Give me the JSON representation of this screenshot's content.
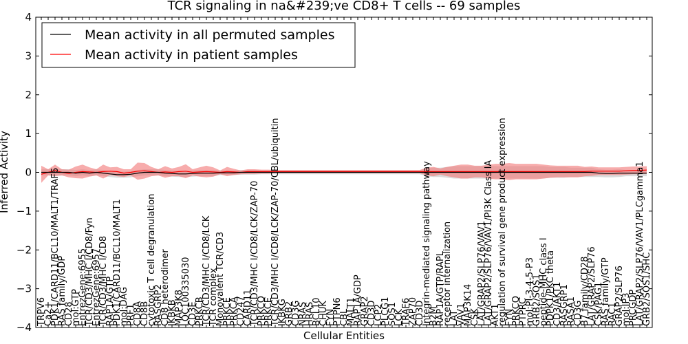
{
  "chart_data": {
    "type": "line",
    "title": "TCR signaling in na&#239;ve CD8+ T cells -- 69 samples",
    "xlabel": "Cellular Entities",
    "ylabel": "Inferred Activity",
    "ylim": [
      -4,
      4
    ],
    "yticks": [
      "−4",
      "−3",
      "−2",
      "−1",
      "0",
      "1",
      "2",
      "3",
      "4"
    ],
    "legend": {
      "position": "top-left",
      "entries": [
        {
          "label": "Mean activity in all permuted samples",
          "color": "#000000"
        },
        {
          "label": "Mean activity in patient samples",
          "color": "#ff0000"
        }
      ]
    },
    "categories": [
      "TRPV6",
      "Ca2+",
      "PDK1/CARD11/BCL10/MALT1/TRAF6",
      "RAS family/GDP",
      "CD28",
      "mol:GTP",
      "EntrezGene:6955",
      "TCR/CD3/MHC I/CD8/Fyn",
      "EntrezGene:6957",
      "TCR/CD3/MHC I/CD8",
      "RAP1A/GTP",
      "PDK1/CARD11/BCL10/MALT1",
      "mol:DAG",
      "PRF1",
      "CD8A",
      "CD8B",
      "cytotoxic T cell degranulation",
      "RASGRP2",
      "CD8 heterodimer",
      "IKBKB",
      "MAP3K8",
      "LOC100335030",
      "CD3E",
      "PRKCB",
      "TCR/CD3/MHC I/CD8/LCK",
      "TCR complex",
      "Monovalent TCR/CD3",
      "PRKCE",
      "PRKCA",
      "CD247",
      "CARD11",
      "TCR/CD3/MHC I/CD8/LCK/ZAP-70",
      "PRKCQ",
      "PRKCE",
      "TCR/CD3/MHC I/CD8/LCK/ZAP-70/CBL/ubiquitin",
      "IKBKG",
      "GRB2",
      "CD3G",
      "NRAS",
      "HRAS",
      "BCL10",
      "CHUK",
      "FYN",
      "PTPN6",
      "CBL",
      "MALT1",
      "RAP1A/GDP",
      "GRAP2",
      "CD3D",
      "LCP2",
      "PLCG1",
      "SOS1",
      "LCK",
      "TRAF6",
      "ZAP70",
      "CD3D",
      "Integrin-mediated signaling pathway",
      "B2M",
      "RAP1A/GTP/RAPL",
      "receptor internalization",
      "LAT",
      "VAV1",
      "MAP3K14",
      "CSK",
      "LAT/GRAP2/SLP76/VAV1",
      "LAT/GRAP2/SLP76/VAV1/PI3K Class IA",
      "AKT1",
      "regulation of survival gene product expression",
      "FYN",
      "PRKCQ",
      "PTPRC",
      "mol:PI-3-4-5-P3",
      "GRB2/SOS1",
      "peptide-MHC class I",
      "PDPK1/PKC theta",
      "CD3/AKT1",
      "RASGRP1",
      "RASA1",
      "CD3G",
      "B7 family/CD28",
      "LAT/GRAP2/SLP76",
      "CSK/PAG1",
      "RAS family/GTP",
      "RAC1",
      "GRAP2/SLP76",
      "mol:IP3",
      "PRCGDP",
      "LAT/GRAP2/SLP76/VAV1/PLCgamma1",
      "GRB2/SOS1/SHC"
    ],
    "series": [
      {
        "name": "Mean activity in patient samples",
        "values": [
          -0.05,
          0.0,
          0.05,
          0.0,
          -0.03,
          0.0,
          0.02,
          0.01,
          0.0,
          0.02,
          0.03,
          0.02,
          -0.02,
          0.0,
          0.03,
          0.04,
          0.02,
          0.0,
          0.01,
          0.0,
          0.02,
          0.03,
          0.0,
          0.01,
          0.02,
          0.01,
          0.0,
          0.02,
          0.01,
          0.0,
          0.02,
          0.02,
          0.02,
          0.02,
          0.02,
          0.02,
          0.02,
          0.02,
          0.02,
          0.02,
          0.02,
          0.02,
          0.02,
          0.02,
          0.02,
          0.02,
          0.02,
          0.02,
          0.02,
          0.02,
          0.02,
          0.02,
          0.02,
          0.02,
          0.02,
          0.02,
          0.02,
          0.02,
          0.02,
          0.02,
          0.02,
          0.02,
          0.02,
          0.02,
          0.02,
          0.02,
          0.02,
          0.02,
          0.02,
          0.02,
          0.02,
          0.02,
          0.02,
          0.02,
          0.02,
          0.02,
          0.02,
          0.02,
          0.02,
          0.02,
          0.03,
          0.03,
          0.03,
          0.03,
          0.03,
          0.04,
          0.05,
          0.05,
          0.06
        ],
        "band_halfwidth": [
          0.22,
          0.08,
          0.15,
          0.08,
          0.1,
          0.15,
          0.18,
          0.12,
          0.08,
          0.18,
          0.1,
          0.12,
          0.1,
          0.08,
          0.22,
          0.2,
          0.12,
          0.08,
          0.15,
          0.1,
          0.12,
          0.18,
          0.08,
          0.12,
          0.15,
          0.12,
          0.05,
          0.12,
          0.08,
          0.05,
          0.06,
          0.06,
          0.05,
          0.05,
          0.04,
          0.04,
          0.04,
          0.04,
          0.04,
          0.04,
          0.04,
          0.04,
          0.04,
          0.04,
          0.04,
          0.04,
          0.04,
          0.04,
          0.04,
          0.04,
          0.04,
          0.04,
          0.04,
          0.04,
          0.04,
          0.04,
          0.1,
          0.12,
          0.08,
          0.12,
          0.15,
          0.18,
          0.18,
          0.15,
          0.15,
          0.18,
          0.2,
          0.2,
          0.22,
          0.2,
          0.2,
          0.2,
          0.2,
          0.18,
          0.16,
          0.15,
          0.15,
          0.15,
          0.15,
          0.12,
          0.12,
          0.1,
          0.1,
          0.1,
          0.1,
          0.1,
          0.1,
          0.1,
          0.1
        ]
      },
      {
        "name": "Mean activity in all permuted samples",
        "values": [
          0.0,
          0.0,
          0.0,
          0.0,
          0.0,
          -0.02,
          0.0,
          -0.02,
          0.0,
          -0.02,
          -0.04,
          -0.06,
          -0.06,
          -0.05,
          -0.02,
          0.0,
          0.0,
          0.0,
          -0.02,
          -0.03,
          -0.04,
          -0.04,
          -0.03,
          -0.02,
          -0.02,
          -0.02,
          -0.01,
          -0.01,
          -0.01,
          0.0,
          0.0,
          0.0,
          0.0,
          0.0,
          0.0,
          0.0,
          0.0,
          0.0,
          0.0,
          0.0,
          0.0,
          0.0,
          0.0,
          0.0,
          0.0,
          0.0,
          0.0,
          0.0,
          0.0,
          0.0,
          0.0,
          0.0,
          0.0,
          0.0,
          0.0,
          0.0,
          0.0,
          0.0,
          0.0,
          0.0,
          0.0,
          0.0,
          0.0,
          0.0,
          0.0,
          0.0,
          0.0,
          0.0,
          0.0,
          0.0,
          0.0,
          0.0,
          0.0,
          0.0,
          0.0,
          0.0,
          0.0,
          0.0,
          0.0,
          0.0,
          0.0,
          -0.02,
          -0.03,
          -0.03,
          -0.02,
          -0.02,
          -0.02,
          -0.02,
          -0.02
        ],
        "band_halfwidth": [
          0.08,
          0.08,
          0.08,
          0.08,
          0.08,
          0.08,
          0.08,
          0.08,
          0.08,
          0.08,
          0.08,
          0.08,
          0.08,
          0.08,
          0.08,
          0.08,
          0.08,
          0.08,
          0.08,
          0.08,
          0.08,
          0.08,
          0.08,
          0.08,
          0.08,
          0.08,
          0.06,
          0.06,
          0.06,
          0.06,
          0.06,
          0.06,
          0.05,
          0.05,
          0.05,
          0.05,
          0.05,
          0.05,
          0.05,
          0.05,
          0.05,
          0.05,
          0.05,
          0.05,
          0.05,
          0.05,
          0.05,
          0.05,
          0.05,
          0.05,
          0.05,
          0.05,
          0.05,
          0.05,
          0.05,
          0.05,
          0.1,
          0.12,
          0.12,
          0.14,
          0.16,
          0.16,
          0.16,
          0.16,
          0.16,
          0.16,
          0.16,
          0.16,
          0.16,
          0.16,
          0.16,
          0.16,
          0.16,
          0.16,
          0.14,
          0.14,
          0.14,
          0.12,
          0.12,
          0.12,
          0.12,
          0.1,
          0.1,
          0.1,
          0.1,
          0.08,
          0.08,
          0.08,
          0.08
        ]
      }
    ]
  }
}
